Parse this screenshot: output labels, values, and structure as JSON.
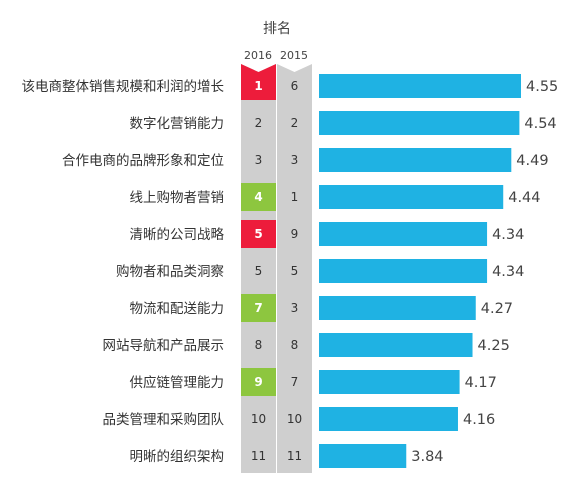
{
  "chart_data": {
    "type": "bar",
    "orientation": "horizontal",
    "title": "",
    "rank_header": "排名",
    "rank_years": [
      "2016",
      "2015"
    ],
    "categories": [
      "该电商整体销售规模和利润的增长",
      "数字化营销能力",
      "合作电商的品牌形象和定位",
      "线上购物者营销",
      "清晰的公司战略",
      "购物者和品类洞察",
      "物流和配送能力",
      "网站导航和产品展示",
      "供应链管理能力",
      "品类管理和采购团队",
      "明晰的组织架构"
    ],
    "values": [
      4.55,
      4.54,
      4.49,
      4.44,
      4.34,
      4.34,
      4.27,
      4.25,
      4.17,
      4.16,
      3.84
    ],
    "value_labels": [
      "4.55",
      "4.54",
      "4.49",
      "4.44",
      "4.34",
      "4.34",
      "4.27",
      "4.25",
      "4.17",
      "4.16",
      "3.84"
    ],
    "rank_2016": [
      "1",
      "2",
      "3",
      "4",
      "5",
      "5",
      "7",
      "8",
      "9",
      "10",
      "11"
    ],
    "rank_2015": [
      "6",
      "2",
      "3",
      "1",
      "9",
      "5",
      "3",
      "8",
      "7",
      "10",
      "11"
    ],
    "rank_2016_status": [
      "down",
      "same",
      "same",
      "up",
      "down",
      "same",
      "up",
      "same",
      "up",
      "same",
      "same"
    ],
    "colors": {
      "bar": "#1fb2e3",
      "up": "#8dc63f",
      "down": "#ed1c3b",
      "same": "#cfcfcf",
      "column_2015": "#cfcfcf"
    },
    "xlim": [
      3.3,
      4.55
    ],
    "grid": false,
    "legend": "none"
  }
}
